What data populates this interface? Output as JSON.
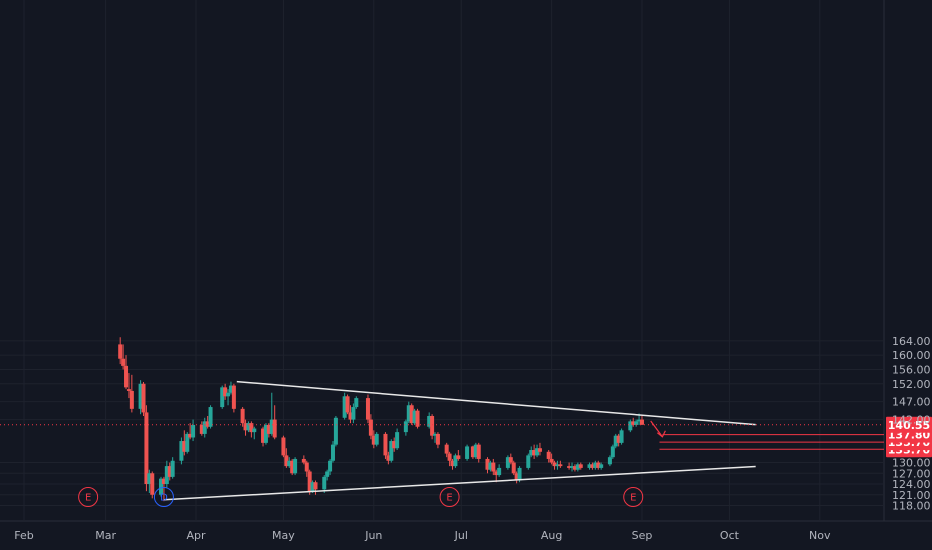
{
  "chart_data": {
    "type": "candlestick",
    "x_tick_labels": [
      "Feb",
      "Mar",
      "Apr",
      "May",
      "Jun",
      "Jul",
      "Aug",
      "Sep",
      "Oct",
      "Nov"
    ],
    "y_ticks": [
      "118.00",
      "121.00",
      "124.00",
      "127.00",
      "130.00",
      "133.70",
      "135.70",
      "137.80",
      "140.55",
      "142.00",
      "147.00",
      "152.00",
      "156.00",
      "160.00",
      "164.00"
    ],
    "ylim": [
      116.5,
      165
    ],
    "last_price": "140.55",
    "target_levels": [
      "137.80",
      "135.70",
      "133.70"
    ],
    "trendlines": [
      {
        "name": "upper-resistance",
        "from": [
          "Apr 15",
          152.6
        ],
        "to": [
          "Oct 10",
          140.6
        ]
      },
      {
        "name": "lower-support",
        "from": [
          "Mar 21",
          119.6
        ],
        "to": [
          "Oct 10",
          128.9
        ]
      }
    ],
    "event_markers": [
      {
        "label": "E",
        "date": "Feb 23",
        "color": "#f23645"
      },
      {
        "label": "D",
        "date": "Mar 21",
        "color": "#2962ff"
      },
      {
        "label": "E",
        "date": "Jun 27",
        "color": "#f23645"
      },
      {
        "label": "E",
        "date": "Aug 29",
        "color": "#f23645"
      }
    ],
    "candles": [
      [
        "Mar 06",
        163.0,
        165.0,
        157.5,
        159.0
      ],
      [
        "Mar 07",
        159.0,
        163.0,
        156.0,
        157.0
      ],
      [
        "Mar 08",
        157.0,
        160.0,
        150.5,
        151.0
      ],
      [
        "Mar 09",
        150.5,
        155.0,
        148.0,
        150.0
      ],
      [
        "Mar 10",
        150.0,
        154.5,
        144.0,
        145.0
      ],
      [
        "Mar 13",
        145.0,
        153.0,
        143.5,
        152.0
      ],
      [
        "Mar 14",
        152.0,
        152.5,
        143.0,
        144.0
      ],
      [
        "Mar 15",
        144.0,
        146.0,
        122.0,
        124.0
      ],
      [
        "Mar 16",
        124.0,
        128.0,
        121.5,
        127.0
      ],
      [
        "Mar 17",
        127.0,
        127.5,
        120.0,
        121.0
      ],
      [
        "Mar 20",
        121.0,
        126.0,
        120.5,
        125.5
      ],
      [
        "Mar 21",
        125.5,
        126.0,
        119.2,
        124.0
      ],
      [
        "Mar 22",
        124.0,
        130.5,
        123.0,
        129.0
      ],
      [
        "Mar 23",
        129.0,
        130.0,
        125.0,
        126.0
      ],
      [
        "Mar 24",
        126.0,
        131.5,
        125.5,
        130.5
      ],
      [
        "Mar 27",
        130.5,
        137.0,
        129.5,
        136.0
      ],
      [
        "Mar 28",
        136.0,
        139.0,
        132.0,
        133.0
      ],
      [
        "Mar 29",
        133.0,
        138.5,
        132.5,
        138.0
      ],
      [
        "Mar 30",
        138.0,
        141.0,
        136.5,
        137.0
      ],
      [
        "Mar 31",
        137.0,
        142.0,
        136.0,
        140.5
      ],
      [
        "Apr 03",
        140.5,
        141.5,
        137.5,
        138.0
      ],
      [
        "Apr 04",
        138.0,
        142.5,
        137.0,
        141.5
      ],
      [
        "Apr 05",
        141.5,
        143.0,
        139.5,
        140.0
      ],
      [
        "Apr 06",
        140.0,
        146.0,
        139.5,
        145.5
      ],
      [
        "Apr 10",
        145.5,
        151.5,
        145.0,
        151.0
      ],
      [
        "Apr 11",
        151.0,
        152.0,
        147.5,
        148.5
      ],
      [
        "Apr 12",
        148.5,
        150.5,
        146.0,
        149.5
      ],
      [
        "Apr 13",
        149.5,
        152.6,
        149.0,
        151.5
      ],
      [
        "Apr 14",
        151.5,
        152.0,
        144.0,
        145.0
      ],
      [
        "Apr 17",
        145.0,
        145.5,
        140.0,
        141.0
      ],
      [
        "Apr 18",
        141.0,
        142.0,
        137.5,
        139.0
      ],
      [
        "Apr 19",
        139.0,
        141.5,
        138.5,
        141.0
      ],
      [
        "Apr 20",
        141.0,
        141.5,
        137.0,
        138.5
      ],
      [
        "Apr 21",
        138.5,
        140.0,
        136.5,
        139.5
      ],
      [
        "Apr 24",
        139.5,
        140.0,
        134.5,
        135.5
      ],
      [
        "Apr 25",
        135.5,
        141.0,
        135.0,
        140.5
      ],
      [
        "Apr 26",
        140.5,
        141.0,
        137.0,
        138.0
      ],
      [
        "Apr 27",
        138.0,
        149.5,
        137.5,
        142.0
      ],
      [
        "Apr 28",
        142.0,
        146.0,
        136.5,
        137.0
      ],
      [
        "May 01",
        137.0,
        137.5,
        131.5,
        132.0
      ],
      [
        "May 02",
        132.0,
        134.0,
        128.5,
        129.0
      ],
      [
        "May 03",
        129.0,
        131.5,
        128.5,
        130.5
      ],
      [
        "May 04",
        130.5,
        131.0,
        126.5,
        127.0
      ],
      [
        "May 05",
        127.0,
        131.5,
        126.5,
        131.0
      ],
      [
        "May 08",
        131.0,
        132.0,
        129.5,
        130.0
      ],
      [
        "May 09",
        130.0,
        130.5,
        126.0,
        127.5
      ],
      [
        "May 10",
        127.5,
        128.0,
        121.0,
        122.0
      ],
      [
        "May 11",
        122.0,
        125.0,
        121.5,
        124.5
      ],
      [
        "May 12",
        124.5,
        125.0,
        121.0,
        122.5
      ],
      [
        "May 15",
        122.5,
        126.5,
        121.5,
        126.0
      ],
      [
        "May 16",
        126.0,
        128.0,
        125.0,
        127.5
      ],
      [
        "May 17",
        127.5,
        131.0,
        126.5,
        130.5
      ],
      [
        "May 18",
        130.5,
        136.0,
        130.0,
        135.0
      ],
      [
        "May 19",
        135.0,
        143.0,
        134.5,
        142.5
      ],
      [
        "May 22",
        142.5,
        149.5,
        142.0,
        148.5
      ],
      [
        "May 23",
        148.5,
        149.0,
        143.5,
        144.0
      ],
      [
        "May 24",
        144.0,
        146.0,
        141.0,
        142.0
      ],
      [
        "May 25",
        142.0,
        146.5,
        141.0,
        145.5
      ],
      [
        "May 26",
        145.5,
        148.5,
        145.0,
        148.0
      ],
      [
        "May 30",
        148.0,
        149.0,
        141.0,
        142.0
      ],
      [
        "May 31",
        142.0,
        143.5,
        136.5,
        137.5
      ],
      [
        "Jun 01",
        137.5,
        139.0,
        134.0,
        135.0
      ],
      [
        "Jun 02",
        135.0,
        138.5,
        134.5,
        138.0
      ],
      [
        "Jun 05",
        138.0,
        138.5,
        131.0,
        132.0
      ],
      [
        "Jun 06",
        132.0,
        133.0,
        129.5,
        130.5
      ],
      [
        "Jun 07",
        130.5,
        136.5,
        130.0,
        136.0
      ],
      [
        "Jun 08",
        136.0,
        137.0,
        133.0,
        134.0
      ],
      [
        "Jun 09",
        134.0,
        139.5,
        133.5,
        138.5
      ],
      [
        "Jun 12",
        138.5,
        142.0,
        137.5,
        141.5
      ],
      [
        "Jun 13",
        141.5,
        147.0,
        141.0,
        146.0
      ],
      [
        "Jun 14",
        146.0,
        146.5,
        140.5,
        141.0
      ],
      [
        "Jun 15",
        141.0,
        145.0,
        140.5,
        144.5
      ],
      [
        "Jun 16",
        144.5,
        145.0,
        139.5,
        140.0
      ],
      [
        "Jun 20",
        140.0,
        144.0,
        139.5,
        143.0
      ],
      [
        "Jun 21",
        143.0,
        143.5,
        136.5,
        137.5
      ],
      [
        "Jun 22",
        137.5,
        138.5,
        135.5,
        138.0
      ],
      [
        "Jun 23",
        138.0,
        138.5,
        134.0,
        135.0
      ],
      [
        "Jun 26",
        135.0,
        135.5,
        131.5,
        132.5
      ],
      [
        "Jun 27",
        132.5,
        133.0,
        129.0,
        130.5
      ],
      [
        "Jun 28",
        130.5,
        131.0,
        128.0,
        129.0
      ],
      [
        "Jun 29",
        129.0,
        132.5,
        128.5,
        132.0
      ],
      [
        "Jun 30",
        132.0,
        133.5,
        130.5,
        131.0
      ],
      [
        "Jul 03",
        131.0,
        135.0,
        130.5,
        134.5
      ],
      [
        "Jul 05",
        134.5,
        134.7,
        131.0,
        131.5
      ],
      [
        "Jul 06",
        131.5,
        135.5,
        131.0,
        135.0
      ],
      [
        "Jul 07",
        135.0,
        135.5,
        130.0,
        131.0
      ],
      [
        "Jul 10",
        131.0,
        131.5,
        127.0,
        128.0
      ],
      [
        "Jul 11",
        128.0,
        130.5,
        127.5,
        130.0
      ],
      [
        "Jul 12",
        130.0,
        131.0,
        126.5,
        127.5
      ],
      [
        "Jul 13",
        127.5,
        128.0,
        124.5,
        126.5
      ],
      [
        "Jul 14",
        126.5,
        129.5,
        126.0,
        128.5
      ],
      [
        "Jul 17",
        128.5,
        132.0,
        128.0,
        131.5
      ],
      [
        "Jul 18",
        131.5,
        132.5,
        129.5,
        130.0
      ],
      [
        "Jul 19",
        130.0,
        130.5,
        126.5,
        127.0
      ],
      [
        "Jul 20",
        127.0,
        127.5,
        124.2,
        125.0
      ],
      [
        "Jul 21",
        125.0,
        129.0,
        124.5,
        128.5
      ],
      [
        "Jul 24",
        128.5,
        132.5,
        128.0,
        132.0
      ],
      [
        "Jul 25",
        132.0,
        134.5,
        131.5,
        133.5
      ],
      [
        "Jul 26",
        133.5,
        135.0,
        131.0,
        132.0
      ],
      [
        "Jul 27",
        132.0,
        135.0,
        131.5,
        134.0
      ],
      [
        "Jul 28",
        134.0,
        135.5,
        132.0,
        133.0
      ],
      [
        "Jul 31",
        133.0,
        133.5,
        130.0,
        131.0
      ],
      [
        "Aug 01",
        131.0,
        132.5,
        129.5,
        130.0
      ],
      [
        "Aug 02",
        130.0,
        130.5,
        128.0,
        129.0
      ],
      [
        "Aug 03",
        129.0,
        130.5,
        128.0,
        129.5
      ],
      [
        "Aug 04",
        129.5,
        130.5,
        128.5,
        129.0
      ],
      [
        "Aug 07",
        129.0,
        130.0,
        128.0,
        128.5
      ],
      [
        "Aug 08",
        128.5,
        130.0,
        127.5,
        129.0
      ],
      [
        "Aug 09",
        129.0,
        129.5,
        127.5,
        128.0
      ],
      [
        "Aug 10",
        128.0,
        130.0,
        127.5,
        129.5
      ],
      [
        "Aug 11",
        129.5,
        130.0,
        128.0,
        128.5
      ],
      [
        "Aug 14",
        128.5,
        130.0,
        128.0,
        129.5
      ],
      [
        "Aug 15",
        129.5,
        130.0,
        128.0,
        128.5
      ],
      [
        "Aug 16",
        128.5,
        130.5,
        128.0,
        130.0
      ],
      [
        "Aug 17",
        130.0,
        130.5,
        128.0,
        128.5
      ],
      [
        "Aug 18",
        128.5,
        130.0,
        128.0,
        129.5
      ],
      [
        "Aug 21",
        129.5,
        132.0,
        129.0,
        131.5
      ],
      [
        "Aug 22",
        131.5,
        135.0,
        131.0,
        134.5
      ],
      [
        "Aug 23",
        134.5,
        138.0,
        134.0,
        137.5
      ],
      [
        "Aug 24",
        137.5,
        138.0,
        134.5,
        135.5
      ],
      [
        "Aug 25",
        135.5,
        139.5,
        135.0,
        139.0
      ],
      [
        "Aug 28",
        139.0,
        142.0,
        138.5,
        141.5
      ],
      [
        "Aug 29",
        141.5,
        142.5,
        140.0,
        140.5
      ],
      [
        "Aug 30",
        140.5,
        142.0,
        140.0,
        141.5
      ],
      [
        "Aug 31",
        141.5,
        143.7,
        140.5,
        142.0
      ],
      [
        "Sep 01",
        142.0,
        143.0,
        140.5,
        140.55
      ]
    ]
  },
  "colors": {
    "background": "#131722",
    "grid": "#1e222d",
    "axis_text": "#b2b5be",
    "up": "#26a69a",
    "down": "#ef5350",
    "trendline": "#e8e8e8",
    "target": "#f23645",
    "price_line": "#f23645"
  }
}
